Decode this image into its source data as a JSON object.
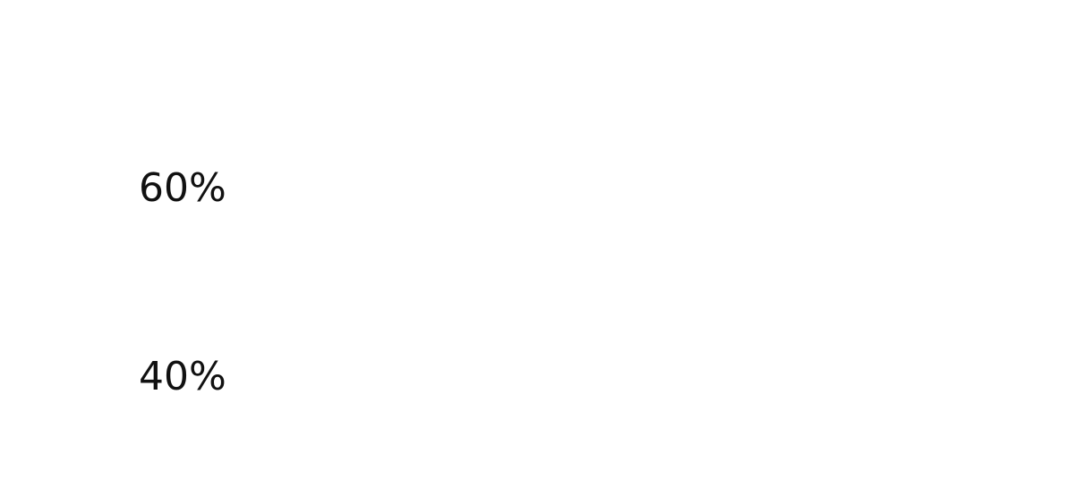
{
  "chart_data": {
    "type": "bar",
    "ylabel": "",
    "xlabel": "",
    "grid": false,
    "y_ticks": [
      {
        "value": 60,
        "label": "60%"
      },
      {
        "value": 40,
        "label": "40%"
      }
    ],
    "ylim": [
      30,
      70
    ],
    "categories": [],
    "values": []
  },
  "colors": {
    "background": "#ffffff",
    "text": "#111111"
  }
}
